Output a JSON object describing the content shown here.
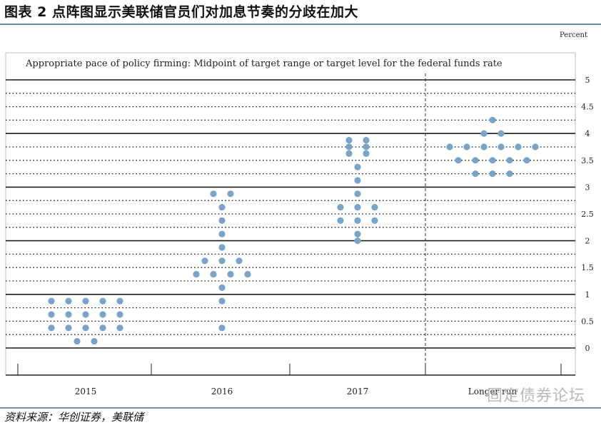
{
  "header": {
    "title": "图表 2 点阵图显示美联储官员们对加息节奏的分歧在加大"
  },
  "footer": {
    "source": "资料来源：华创证券，美联储",
    "watermark": "固定债券论坛"
  },
  "chart_data": {
    "type": "scatter",
    "title": "Appropriate pace of policy firming: Midpoint of target range or target level for the federal funds rate",
    "unit_label": "Percent",
    "categories": [
      "2015",
      "2016",
      "2017",
      "Longer run"
    ],
    "ylim": [
      0,
      5
    ],
    "yticks": [
      "0",
      "0.5",
      "1",
      "1.5",
      "2",
      "2.5",
      "3",
      "3.5",
      "4",
      "4.5",
      "5"
    ],
    "grid": "horizontal lines at whole numbers, dotted lines at quarter points",
    "dot_color": "#7aa3c8",
    "series": [
      {
        "x": "2015",
        "dots": [
          {
            "y": 0.125,
            "count": 2
          },
          {
            "y": 0.375,
            "count": 5
          },
          {
            "y": 0.625,
            "count": 5
          },
          {
            "y": 0.875,
            "count": 5
          }
        ]
      },
      {
        "x": "2016",
        "dots": [
          {
            "y": 0.375,
            "count": 1
          },
          {
            "y": 0.875,
            "count": 1
          },
          {
            "y": 1.125,
            "count": 1
          },
          {
            "y": 1.375,
            "count": 4
          },
          {
            "y": 1.625,
            "count": 3
          },
          {
            "y": 1.875,
            "count": 1
          },
          {
            "y": 2.125,
            "count": 1
          },
          {
            "y": 2.375,
            "count": 1
          },
          {
            "y": 2.625,
            "count": 1
          },
          {
            "y": 2.875,
            "count": 2
          }
        ]
      },
      {
        "x": "2017",
        "dots": [
          {
            "y": 2.0,
            "count": 1
          },
          {
            "y": 2.125,
            "count": 1
          },
          {
            "y": 2.375,
            "count": 3
          },
          {
            "y": 2.625,
            "count": 3
          },
          {
            "y": 2.875,
            "count": 1
          },
          {
            "y": 3.125,
            "count": 1
          },
          {
            "y": 3.375,
            "count": 1
          },
          {
            "y": 3.625,
            "count": 2
          },
          {
            "y": 3.75,
            "count": 2
          },
          {
            "y": 3.875,
            "count": 2
          }
        ]
      },
      {
        "x": "Longer run",
        "dots": [
          {
            "y": 3.25,
            "count": 3
          },
          {
            "y": 3.5,
            "count": 5
          },
          {
            "y": 3.75,
            "count": 6
          },
          {
            "y": 4.0,
            "count": 2
          },
          {
            "y": 4.25,
            "count": 1
          }
        ]
      }
    ]
  }
}
